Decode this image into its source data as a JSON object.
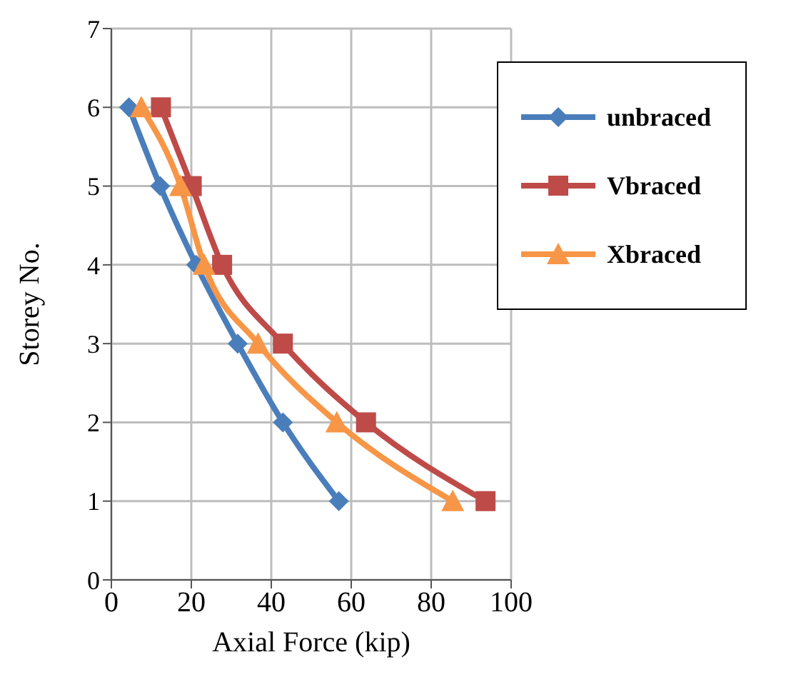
{
  "chart_data": {
    "type": "line",
    "xlabel": "Axial Force (kip)",
    "ylabel": "Storey No.",
    "xlim": [
      0,
      100
    ],
    "xticks": [
      0,
      20,
      40,
      60,
      80,
      100
    ],
    "ylim": [
      0,
      7
    ],
    "yticks": [
      0,
      1,
      2,
      3,
      4,
      5,
      6,
      7
    ],
    "grid": true,
    "legend": "top right",
    "line_style": "solid",
    "series": [
      {
        "name": "unbraced",
        "color": "#4a7ebb",
        "marker": "diamond",
        "x": [
          4.4,
          12.2,
          21.2,
          31.6,
          42.9,
          56.9
        ],
        "values": [
          6,
          5,
          4,
          3,
          2,
          1
        ]
      },
      {
        "name": "Vbraced",
        "color": "#be4b48",
        "marker": "square",
        "x": [
          12.4,
          20.1,
          27.7,
          42.9,
          63.7,
          93.6
        ],
        "values": [
          6,
          5,
          4,
          3,
          2,
          1
        ]
      },
      {
        "name": "Xbraced",
        "color": "#f79646",
        "marker": "triangle",
        "x": [
          7.5,
          17.3,
          23.2,
          36.7,
          56.4,
          85.4
        ],
        "values": [
          6,
          5,
          4,
          3,
          2,
          1
        ]
      }
    ]
  }
}
